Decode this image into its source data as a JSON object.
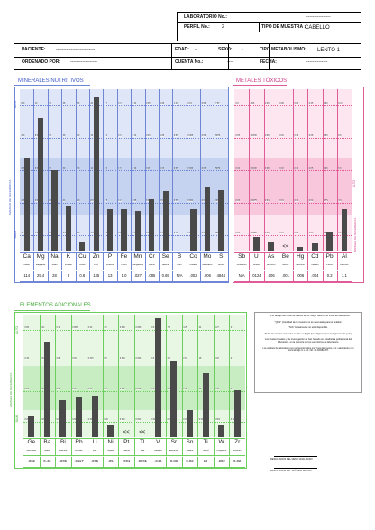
{
  "header": {
    "lab_label": "LABORATORIO No.:",
    "lab_value": "----------------",
    "profile_label": "PERFIL No.:",
    "profile_value": "2",
    "sample_label": "TIPO DE MUESTRA :",
    "sample_value": "CABELLO",
    "patient_label": "PACIENTE:",
    "patient_value": "--------------------------",
    "age_label": "EDAD:",
    "age_value": "--",
    "sex_label": "SEXO:",
    "sex_value": "-",
    "metabolic_label": "TIPO METABOLISMO:",
    "metabolic_value": "LENTO 1",
    "ordered_label": "ORDENADO POR:",
    "ordered_value": "------------------",
    "account_label": "CUENTA No.:",
    "account_value": "----",
    "date_label": "FECHA:",
    "date_value": "--------------"
  },
  "side_labels": {
    "alto": "ALTO",
    "margen": "MARGEN DE REFERENCIA",
    "bajo": "BAJO"
  },
  "nutritive": {
    "title": "MINERALES NUTRITIVOS",
    "items": [
      {
        "sym": "Ca",
        "name": "Calcio",
        "value": "114",
        "level": 0.58
      },
      {
        "sym": "Mg",
        "name": "Magnesio",
        "value": "25.4",
        "level": 0.82
      },
      {
        "sym": "Na",
        "name": "Sodio",
        "value": "28",
        "level": 0.5
      },
      {
        "sym": "K",
        "name": "Potasio",
        "value": "9",
        "level": 0.28
      },
      {
        "sym": "Cu",
        "name": "Cobre",
        "value": "0.8",
        "level": 0.06
      },
      {
        "sym": "Zn",
        "name": "Zinc",
        "value": "135",
        "level": 0.95
      },
      {
        "sym": "P",
        "name": "Fósforo",
        "value": "13",
        "level": 0.26
      },
      {
        "sym": "Fe",
        "name": "Hierro",
        "value": "1.0",
        "level": 0.26
      },
      {
        "sym": "Mn",
        "name": "Manganeso",
        "value": ".027",
        "level": 0.25
      },
      {
        "sym": "Cr",
        "name": "Cromo",
        "value": ".085",
        "level": 0.32
      },
      {
        "sym": "Se",
        "name": "Selenio",
        "value": "0.69",
        "level": 0.37
      },
      {
        "sym": "B",
        "name": "Boro",
        "value": "N/A",
        "level": 0.0
      },
      {
        "sym": "Co",
        "name": "Cobalto",
        "value": ".002",
        "level": 0.26
      },
      {
        "sym": "Mo",
        "name": "Molibdeno",
        "value": ".006",
        "level": 0.4
      },
      {
        "sym": "S",
        "name": "Azufre",
        "value": "4844",
        "level": 0.38
      }
    ],
    "ticks": [
      [
        "600",
        "12",
        "40",
        "48",
        "5.2",
        "20",
        "2.7",
        "2.3",
        "0.14",
        "0.25",
        "1.48",
        "1.20",
        "0.01",
        "0.08",
        "7.87"
      ],
      [
        "450",
        "9.0",
        "36",
        "39",
        "4.0",
        "16",
        "2.4",
        "2.0",
        "0.12",
        "0.23",
        "1.38",
        "0.95",
        "0.008",
        "0.06",
        "6870"
      ],
      [
        "300",
        "6.0",
        "30",
        "30",
        "3.0",
        "12",
        "2.0",
        "1.6",
        "0.10",
        "0.21",
        "1.15",
        "0.65",
        "0.006",
        "0.05",
        "5870"
      ],
      [
        "150",
        "3.0",
        "24",
        "21",
        "2.0",
        "8.0",
        "1.5",
        "1.2",
        "0.05",
        "0.19",
        "0.92",
        "0.35",
        "0.004",
        "0.04",
        "4870"
      ],
      [
        "20",
        "1.0",
        "4.0",
        "3.0",
        "1.0",
        "2.0",
        "0.3",
        "0.1",
        "0.01",
        "0.05",
        "0.10",
        "0.10",
        "0.001",
        "0.01",
        "3500"
      ]
    ]
  },
  "toxic": {
    "title": "METALES TÓXICOS",
    "items": [
      {
        "sym": "Sb",
        "name": "Antimonio",
        "value": "N/A",
        "level": 0.0
      },
      {
        "sym": "U",
        "name": "Uranio",
        "value": ".0124",
        "level": 0.09
      },
      {
        "sym": "As",
        "name": "Arsénico",
        "value": ".006",
        "level": 0.06
      },
      {
        "sym": "Be",
        "name": "Berilio",
        "value": ".001",
        "level": 0.0,
        "low": true
      },
      {
        "sym": "Hg",
        "name": "Mercurio",
        "value": ".006",
        "level": 0.03
      },
      {
        "sym": "Cd",
        "name": "Cadmio",
        "value": ".004",
        "level": 0.05
      },
      {
        "sym": "Pb",
        "name": "Plomo",
        "value": "0.2",
        "level": 0.12
      },
      {
        "sym": "Al",
        "name": "Aluminio",
        "value": "1.1",
        "level": 0.26
      }
    ],
    "ticks": [
      [
        "0.0",
        "0.15",
        "2.00",
        "0.08",
        "0.25",
        "0.25",
        "1.90",
        "11.0"
      ],
      [
        "0.05",
        "0.0150",
        "0.08",
        "0.02",
        "0.18",
        "0.08",
        "1.50",
        "8.0"
      ],
      [
        "0.04",
        "0.0100",
        "0.08",
        "0.02",
        "0.14",
        "0.05",
        "1.00",
        "6.0"
      ],
      [
        "0.03",
        "0.0075",
        "0.04",
        "0.01",
        "0.10",
        "0.02",
        "0.75",
        "3.0"
      ],
      [
        "0.02",
        "0.0050",
        "0.03",
        "0.01",
        "0.07",
        "0.02",
        "0.50",
        "2.0"
      ]
    ],
    "markers": "<<"
  },
  "additional": {
    "title": "ELEMENTOS ADICIONALES",
    "items": [
      {
        "sym": "Ge",
        "name": "Germanio",
        "value": ".002",
        "level": 0.18
      },
      {
        "sym": "Ba",
        "name": "Bario",
        "value": "0.46",
        "level": 0.78
      },
      {
        "sym": "Bi",
        "name": "Bismuto",
        "value": ".005",
        "level": 0.3
      },
      {
        "sym": "Rb",
        "name": "Rubidio",
        "value": ".0117",
        "level": 0.32
      },
      {
        "sym": "Li",
        "name": "Litio",
        "value": ".005",
        "level": 0.34
      },
      {
        "sym": "Ni",
        "name": "Níquel",
        "value": ".05",
        "level": 0.1
      },
      {
        "sym": "Pt",
        "name": "Platino",
        "value": ".001",
        "level": 0.0,
        "low": true
      },
      {
        "sym": "Tl",
        "name": "Talio",
        "value": ".0001",
        "level": 0.0,
        "low": true
      },
      {
        "sym": "V",
        "name": "Vanadio",
        "value": ".046",
        "level": 0.97
      },
      {
        "sym": "Sr",
        "name": "Estroncio",
        "value": "0.88",
        "level": 0.62
      },
      {
        "sym": "Sn",
        "name": "Estaño",
        "value": "0.02",
        "level": 0.22
      },
      {
        "sym": "Ti",
        "name": "Titanio",
        "value": "10",
        "level": 0.52
      },
      {
        "sym": "W",
        "name": "Tungsteno",
        "value": ".002",
        "level": 0.1
      },
      {
        "sym": "Zr",
        "name": "Zirconio",
        "value": "0.02",
        "level": 0.38
      }
    ],
    "ticks": [
      [
        "0.80",
        "0.41",
        "0.12",
        "0.005",
        "0.02",
        "1.0",
        "0.006",
        "0.006",
        "0.6",
        "7.3",
        "3.25",
        "24",
        "0.27",
        "0.8"
      ],
      [
        "0.40",
        "0.37",
        "0.08",
        "0.04",
        "0.015",
        "0.8",
        "0.004",
        "0.004",
        "0.4",
        "4.6",
        "2.16",
        "18",
        "0.18",
        "0.6"
      ],
      [
        "0.20",
        "0.20",
        "0.06",
        "0.03",
        "0.01",
        "0.4",
        "0.002",
        "0.002",
        "0.2",
        "2.6",
        "1.08",
        "12",
        "0.09",
        "0.4"
      ],
      [
        "0.001",
        "0.03",
        "0.001",
        "0.001",
        "0.005",
        "0.02",
        "0.001",
        "0.001",
        "0.001",
        "0.01",
        "0.01",
        "0.01",
        "0.001",
        "0.01"
      ]
    ],
    "markers": "<<"
  },
  "notes": [
    "\"**\" Por debajo del límite de cálculo de 20 mayor daño en el límite de calibración.",
    "\"QNS\" (Cantidad de la muestra no es adecuada) para el análisis.",
    "\"N/A\" Actualmente no está disponible.",
    "Todos los niveles minerales se dan en Mg% (mi miligramo por cien gramos de pelo).",
    "Los niveles basales y de investigación se han basado en estadística poblacional del laboratorio, en la mayoría de los suministros de laboratorio.",
    "Los análisis de laboratorio son proporcionados por Trace Elements, Inc. Laboratorio con licencia bajo C.L.I.A. No. 45-D0481787."
  ],
  "signatures": [
    "RESULTADOS DEL DEMO ANALIZADO",
    "RESULTADOS DEL ANÁLISIS PREVIO"
  ],
  "colors": {
    "blue_bg": "#dfe6f8",
    "blue_band": "#c5d2f0",
    "blue_line": "#6f86d6",
    "blue_text": "#3d58c7",
    "pink_bg": "#fde6ef",
    "pink_band": "#f8c7dc",
    "pink_line": "#e05c98",
    "pink_text": "#d23a86",
    "green_bg": "#e8f7e4",
    "green_band": "#c9edc2",
    "green_line": "#6ccf5d",
    "green_text": "#3fa935",
    "bar": "#4a4a4a"
  }
}
